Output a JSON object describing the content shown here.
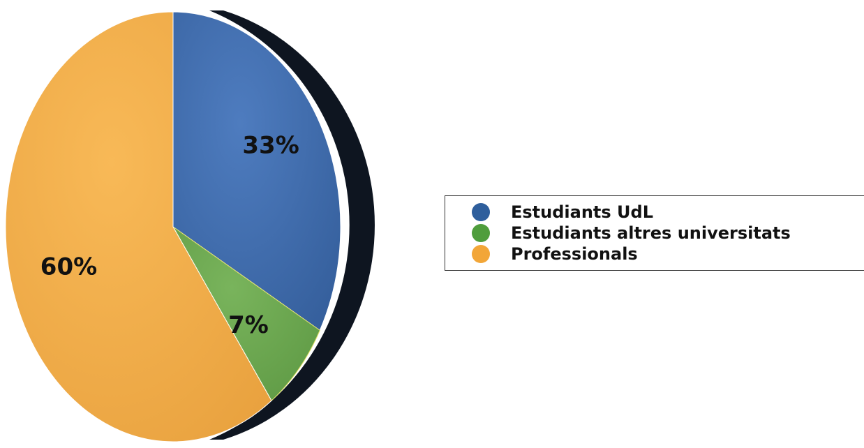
{
  "chart_data": {
    "type": "pie",
    "categories": [
      "Estudiants UdL",
      "Estudiants altres universitats",
      "Professionals"
    ],
    "values": [
      33,
      7,
      60
    ],
    "labels": [
      "33%",
      "7%",
      "60%"
    ],
    "colors": [
      "#3f69a8",
      "#6aa84f",
      "#f2ad4a"
    ],
    "legend_placement": "right"
  },
  "legend": {
    "items": [
      {
        "label": "Estudiants UdL",
        "color": "#2e5e9c"
      },
      {
        "label": "Estudiants altres universitats",
        "color": "#4f9d3c"
      },
      {
        "label": "Professionals",
        "color": "#f2a638"
      }
    ]
  }
}
